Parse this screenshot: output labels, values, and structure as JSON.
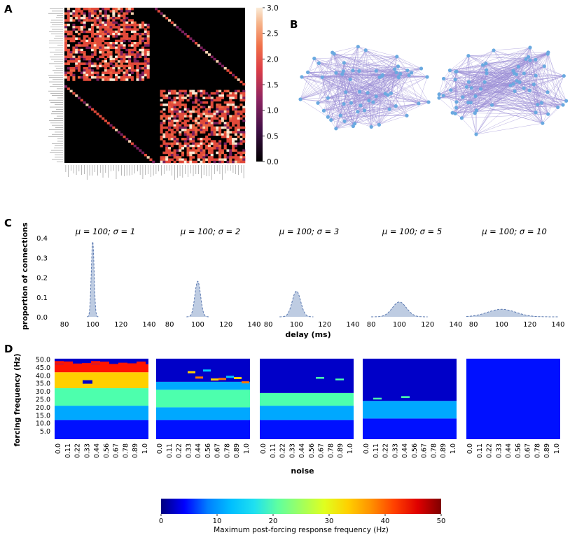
{
  "panels": {
    "a": {
      "label": "A"
    },
    "b": {
      "label": "B"
    },
    "c": {
      "label": "C"
    },
    "d": {
      "label": "D"
    }
  },
  "colors": {
    "heat_low": "#000000",
    "heat_mid": "#e24a3a",
    "heat_high": "#faebd7",
    "graph_edge": "#9b8fd6",
    "graph_node": "#6aa9e0",
    "kde_fill": "#b3c3dd",
    "kde_line": "#5a78b0"
  },
  "chart_data": [
    {
      "id": "A",
      "type": "heatmap",
      "title": "",
      "colorbar_ticks": [
        "0.0",
        "0.5",
        "1.0",
        "1.5",
        "2.0",
        "2.5",
        "3.0"
      ],
      "colorbar_range": [
        0,
        3
      ]
    },
    {
      "id": "C",
      "type": "area",
      "ylabel": "proportion of connections",
      "xlabel": "delay (ms)",
      "ylim": [
        0,
        0.4
      ],
      "yticks": [
        "0.0",
        "0.1",
        "0.2",
        "0.3",
        "0.4"
      ],
      "xticks": [
        "80",
        "100",
        "120",
        "140"
      ],
      "xlim": [
        75,
        143
      ],
      "series": [
        {
          "name": "μ = 100; σ = 1",
          "mu": 100,
          "sigma": 1,
          "peak": 0.38
        },
        {
          "name": "μ = 100; σ = 2",
          "mu": 100,
          "sigma": 2,
          "peak": 0.18
        },
        {
          "name": "μ = 100; σ = 3",
          "mu": 100,
          "sigma": 3,
          "peak": 0.13
        },
        {
          "name": "μ = 100; σ = 5",
          "mu": 100,
          "sigma": 5,
          "peak": 0.075
        },
        {
          "name": "μ = 100; σ = 10",
          "mu": 100,
          "sigma": 10,
          "peak": 0.038
        }
      ]
    },
    {
      "id": "D",
      "type": "heatmap",
      "ylabel": "forcing frequency (Hz)",
      "xlabel": "noise",
      "yticks": [
        "5.0",
        "10.0",
        "15.0",
        "20.0",
        "25.0",
        "30.0",
        "35.0",
        "40.0",
        "45.0",
        "50.0"
      ],
      "xticks": [
        "0.0",
        "0.11",
        "0.22",
        "0.33",
        "0.44",
        "0.56",
        "0.67",
        "0.78",
        "0.89",
        "1.0"
      ],
      "colorbar_label": "Maximum post-forcing response frequency (Hz)",
      "colorbar_ticks": [
        "0",
        "10",
        "20",
        "30",
        "40",
        "50"
      ],
      "colorbar_range": [
        0,
        50
      ]
    }
  ]
}
